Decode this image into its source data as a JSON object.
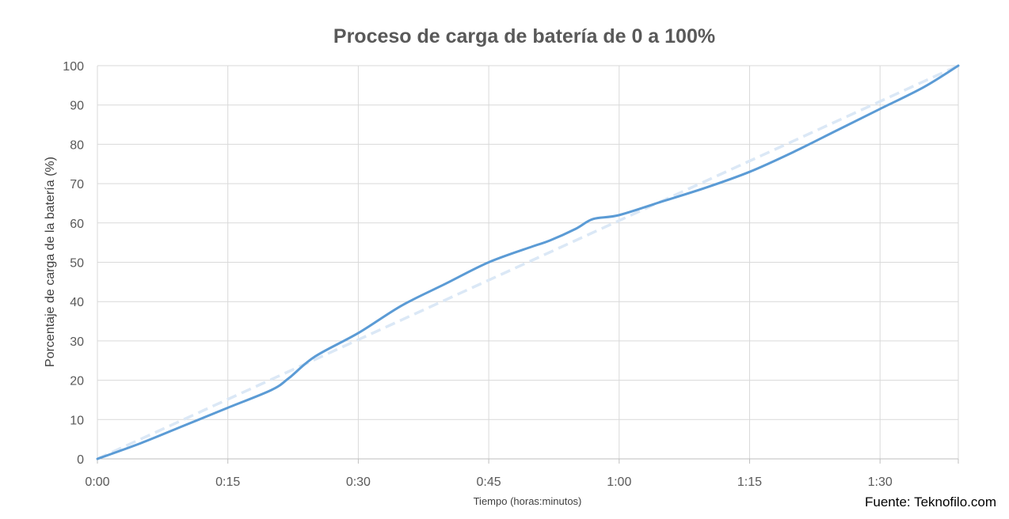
{
  "chart_data": {
    "type": "line",
    "title": "Proceso de carga de batería de 0 a 100%",
    "xlabel": "Tiempo (horas:minutos)",
    "ylabel": "Porcentaje de carga de la batería (%)",
    "source": "Fuente: Teknofilo.com",
    "x_unit": "minutes",
    "xlim": [
      0,
      99
    ],
    "ylim": [
      0,
      100
    ],
    "x_ticks": [
      {
        "value": 0,
        "label": "0:00"
      },
      {
        "value": 15,
        "label": "0:15"
      },
      {
        "value": 30,
        "label": "0:30"
      },
      {
        "value": 45,
        "label": "0:45"
      },
      {
        "value": 60,
        "label": "1:00"
      },
      {
        "value": 75,
        "label": "1:15"
      },
      {
        "value": 90,
        "label": "1:30"
      }
    ],
    "y_ticks": [
      0,
      10,
      20,
      30,
      40,
      50,
      60,
      70,
      80,
      90,
      100
    ],
    "grid": true,
    "legend": "none",
    "colors": {
      "measured": "#5b9bd5",
      "reference": "#dbe8f6"
    },
    "series": [
      {
        "style": "solid",
        "x": [
          0,
          5,
          10,
          15,
          20,
          22,
          25,
          30,
          35,
          40,
          45,
          50,
          52,
          55,
          57,
          60,
          65,
          70,
          75,
          80,
          85,
          90,
          95,
          99
        ],
        "y": [
          0,
          4,
          8.5,
          13,
          17.5,
          20.5,
          26,
          32,
          39,
          44.5,
          50,
          54,
          55.5,
          58.5,
          61,
          62,
          65.5,
          69,
          73,
          78,
          83.5,
          89,
          94.5,
          100
        ]
      },
      {
        "style": "dashed",
        "x": [
          0,
          99
        ],
        "y": [
          0,
          100
        ]
      }
    ]
  }
}
